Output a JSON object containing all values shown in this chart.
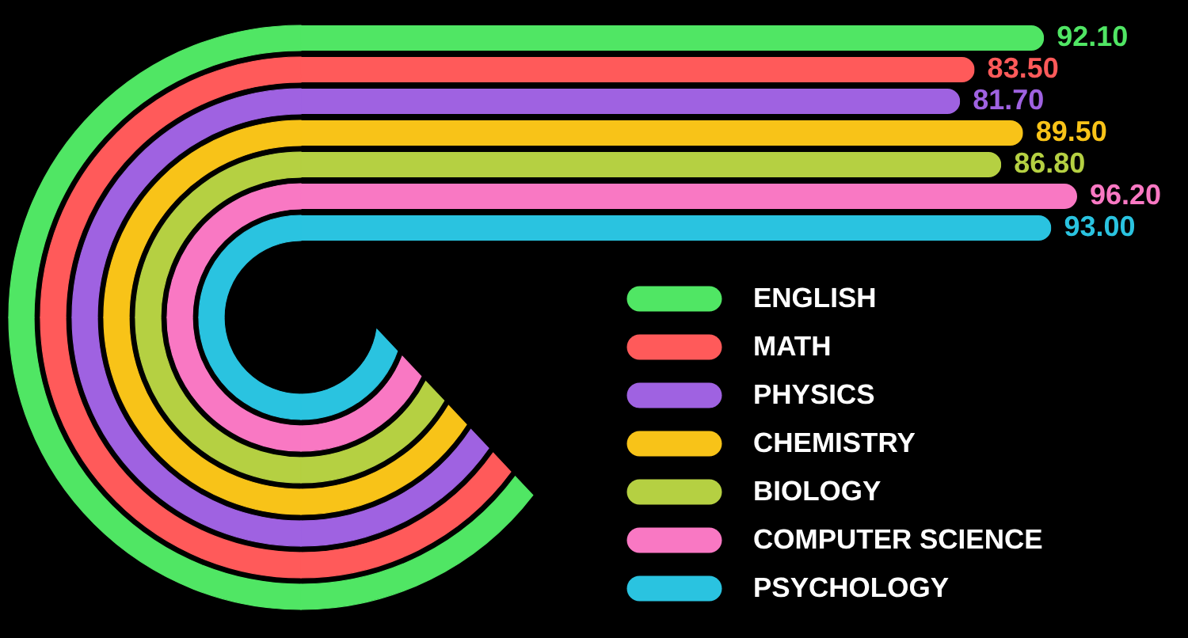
{
  "chart_data": {
    "type": "bar",
    "orientation": "horizontal",
    "stacked": true,
    "categories": [
      null,
      null,
      null,
      null,
      null,
      null,
      null
    ],
    "series": [
      {
        "name": "ENGLISH",
        "color": "#50e664",
        "values": [
          92.1,
          null,
          null,
          null,
          null,
          null,
          null
        ],
        "value_labels": [
          "92.10",
          null,
          null,
          null,
          null,
          null,
          null
        ]
      },
      {
        "name": "MATH",
        "color": "#ff5a5a",
        "values": [
          null,
          83.5,
          null,
          null,
          null,
          null,
          null
        ],
        "value_labels": [
          null,
          "83.50",
          null,
          null,
          null,
          null,
          null
        ]
      },
      {
        "name": "PHYSICS",
        "color": "#9f62e1",
        "values": [
          null,
          null,
          81.7,
          null,
          null,
          null,
          null
        ],
        "value_labels": [
          null,
          null,
          "81.70",
          null,
          null,
          null,
          null
        ]
      },
      {
        "name": "CHEMISTRY",
        "color": "#f8c318",
        "values": [
          null,
          null,
          null,
          89.5,
          null,
          null,
          null
        ],
        "value_labels": [
          null,
          null,
          null,
          "89.50",
          null,
          null,
          null
        ]
      },
      {
        "name": "BIOLOGY",
        "color": "#b5d042",
        "values": [
          null,
          null,
          null,
          null,
          86.8,
          null,
          null
        ],
        "value_labels": [
          null,
          null,
          null,
          null,
          "86.80",
          null,
          null
        ]
      },
      {
        "name": "COMPUTER SCIENCE",
        "color": "#f978c3",
        "values": [
          null,
          null,
          null,
          null,
          null,
          96.2,
          null
        ],
        "value_labels": [
          null,
          null,
          null,
          null,
          null,
          "96.20",
          null
        ]
      },
      {
        "name": "PSYCHOLOGY",
        "color": "#2ac3e0",
        "values": [
          null,
          null,
          null,
          null,
          null,
          null,
          93.0
        ],
        "value_labels": [
          null,
          null,
          null,
          null,
          null,
          null,
          "93.00"
        ]
      }
    ],
    "legend": "bottom right",
    "tick_labels": false
  }
}
